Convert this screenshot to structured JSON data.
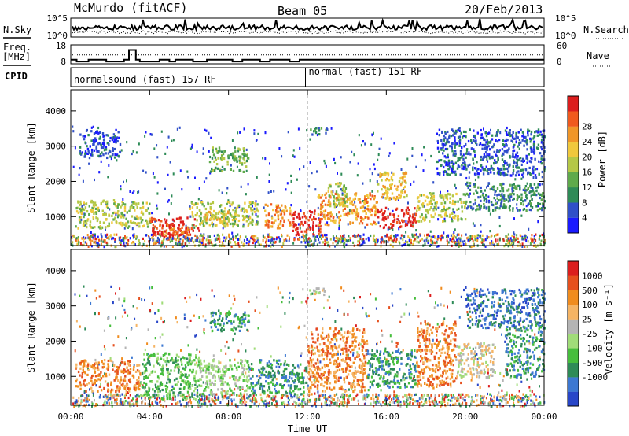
{
  "header": {
    "station": "McMurdo (fitACF)",
    "beam": "Beam 05",
    "date": "20/Feb/2013"
  },
  "status_panel": {
    "nsky_label": "N.Sky",
    "nsearch_label": "N.Search",
    "freq_label_line1": "Freq.",
    "freq_label_line2": "[MHz]",
    "nave_label": "Nave",
    "cpid_label": "CPID",
    "noise_left_ticks": [
      "10^5",
      "10^0"
    ],
    "noise_right_ticks": [
      "10^5",
      "10^0"
    ],
    "freq_ticks": [
      "18",
      "8"
    ],
    "nave_ticks": [
      "60",
      "0"
    ],
    "freq_range": [
      8,
      18
    ],
    "nave_range": [
      0,
      60
    ],
    "freq_steps": [
      {
        "t": 0.0,
        "f": 10.2
      },
      {
        "t": 0.3,
        "f": 9.2
      },
      {
        "t": 0.9,
        "f": 10.2
      },
      {
        "t": 1.8,
        "f": 9.2
      },
      {
        "t": 2.7,
        "f": 10.2
      },
      {
        "t": 2.95,
        "f": 15.3
      },
      {
        "t": 3.3,
        "f": 10.2
      },
      {
        "t": 3.5,
        "f": 9.2
      },
      {
        "t": 4.5,
        "f": 10.2
      },
      {
        "t": 5.0,
        "f": 9.2
      },
      {
        "t": 5.3,
        "f": 10.2
      },
      {
        "t": 6.2,
        "f": 9.2
      },
      {
        "t": 6.9,
        "f": 10.2
      },
      {
        "t": 8.2,
        "f": 9.2
      },
      {
        "t": 8.7,
        "f": 10.2
      },
      {
        "t": 9.6,
        "f": 9.2
      },
      {
        "t": 10.1,
        "f": 10.2
      },
      {
        "t": 11.1,
        "f": 9.2
      },
      {
        "t": 11.6,
        "f": 10.2
      },
      {
        "t": 24.0,
        "f": 10.2
      }
    ],
    "nave_level": 28,
    "cpid_modes": [
      {
        "label": "normalsound (fast) 157 RF",
        "start": 0,
        "end": 11.9
      },
      {
        "label": "normal (fast) 151 RF",
        "start": 11.9,
        "end": 24
      }
    ]
  },
  "chart_data": [
    {
      "type": "heatmap",
      "name": "power-panel",
      "ylabel": "Slant Range [km]",
      "xlabel": "",
      "xlim": [
        0,
        24
      ],
      "ylim": [
        180,
        4600
      ],
      "y_ticks": [
        1000,
        2000,
        3000,
        4000
      ],
      "x_ticks": [
        0,
        4,
        8,
        12,
        16,
        20,
        24
      ],
      "colorbar": {
        "label": "Power [dB]",
        "ticks": [
          "4",
          "8",
          "12",
          "16",
          "20",
          "24",
          "28"
        ],
        "colors": [
          "#1a1aff",
          "#3050c8",
          "#2e8b57",
          "#5faa4b",
          "#b5c846",
          "#f0c83c",
          "#f09628",
          "#f05a1e",
          "#dc1e1e"
        ]
      },
      "regions": [
        {
          "t0": 0.2,
          "t1": 4.0,
          "r0": 700,
          "r1": 1500,
          "v": 4
        },
        {
          "t0": 4.0,
          "t1": 6.5,
          "r0": 450,
          "r1": 1000,
          "v": 8
        },
        {
          "t0": 4.3,
          "t1": 6.0,
          "r0": 500,
          "r1": 800,
          "v": 7
        },
        {
          "t0": 6.0,
          "t1": 9.5,
          "r0": 750,
          "r1": 1450,
          "v": 4
        },
        {
          "t0": 6.5,
          "t1": 8.0,
          "r0": 800,
          "r1": 1200,
          "v": 5
        },
        {
          "t0": 7.0,
          "t1": 9.0,
          "r0": 2300,
          "r1": 3000,
          "v": 3
        },
        {
          "t0": 9.8,
          "t1": 11.2,
          "r0": 700,
          "r1": 1400,
          "v": 6
        },
        {
          "t0": 11.2,
          "t1": 12.7,
          "r0": 500,
          "r1": 1200,
          "v": 8
        },
        {
          "t0": 12.5,
          "t1": 15.5,
          "r0": 800,
          "r1": 1700,
          "v": 6
        },
        {
          "t0": 13.0,
          "t1": 14.0,
          "r0": 1300,
          "r1": 2000,
          "v": 4
        },
        {
          "t0": 15.5,
          "t1": 17.5,
          "r0": 700,
          "r1": 1300,
          "v": 8
        },
        {
          "t0": 15.5,
          "t1": 17.0,
          "r0": 1500,
          "r1": 2300,
          "v": 5
        },
        {
          "t0": 17.5,
          "t1": 20.0,
          "r0": 900,
          "r1": 1700,
          "v": 4
        },
        {
          "t0": 18.5,
          "t1": 24.0,
          "r0": 2200,
          "r1": 3500,
          "v": 1
        },
        {
          "t0": 20.0,
          "t1": 24.0,
          "r0": 1200,
          "r1": 2000,
          "v": 2
        },
        {
          "t0": 0.4,
          "t1": 2.5,
          "r0": 2700,
          "r1": 3500,
          "v": 1
        },
        {
          "t0": 12.0,
          "t1": 13.0,
          "r0": 3350,
          "r1": 3550,
          "v": 2
        }
      ]
    },
    {
      "type": "heatmap",
      "name": "velocity-panel",
      "ylabel": "Slant Range [km]",
      "xlabel": "Time UT",
      "xlim": [
        0,
        24
      ],
      "ylim": [
        180,
        4600
      ],
      "y_ticks": [
        1000,
        2000,
        3000,
        4000
      ],
      "x_ticks": [
        0,
        4,
        8,
        12,
        16,
        20,
        24
      ],
      "x_tick_labels": [
        "00:00",
        "04:00",
        "08:00",
        "12:00",
        "16:00",
        "20:00",
        "00:00"
      ],
      "colorbar": {
        "label": "Velocity [m s⁻¹]",
        "ticks": [
          "1000",
          "500",
          "100",
          "25",
          "-25",
          "-100",
          "-500",
          "-1000"
        ],
        "colors": [
          "#2846c8",
          "#3c78d2",
          "#2e8b57",
          "#46be3c",
          "#a0dc78",
          "#b4b4b4",
          "#f5b464",
          "#f08c1e",
          "#e6501e",
          "#dc1e1e"
        ]
      },
      "regions": [
        {
          "t0": 0.2,
          "t1": 3.5,
          "r0": 600,
          "r1": 1500,
          "v": 7
        },
        {
          "t0": 3.5,
          "t1": 6.5,
          "r0": 400,
          "r1": 1700,
          "v": 3
        },
        {
          "t0": 6.5,
          "t1": 9.0,
          "r0": 500,
          "r1": 1500,
          "v": 4
        },
        {
          "t0": 7.0,
          "t1": 9.0,
          "r0": 2300,
          "r1": 2900,
          "v": 2
        },
        {
          "t0": 9.0,
          "t1": 12.0,
          "r0": 500,
          "r1": 1500,
          "v": 2
        },
        {
          "t0": 12.0,
          "t1": 15.0,
          "r0": 600,
          "r1": 2400,
          "v": 7
        },
        {
          "t0": 15.0,
          "t1": 17.5,
          "r0": 700,
          "r1": 1800,
          "v": 2
        },
        {
          "t0": 17.5,
          "t1": 19.5,
          "r0": 700,
          "r1": 2600,
          "v": 7
        },
        {
          "t0": 19.5,
          "t1": 21.5,
          "r0": 1000,
          "r1": 2000,
          "v": 5
        },
        {
          "t0": 20.0,
          "t1": 24.0,
          "r0": 2400,
          "r1": 3500,
          "v": 1
        },
        {
          "t0": 22.0,
          "t1": 24.0,
          "r0": 1000,
          "r1": 2500,
          "v": 2
        },
        {
          "t0": 12.0,
          "t1": 13.0,
          "r0": 3350,
          "r1": 3550,
          "v": 5
        }
      ]
    }
  ]
}
